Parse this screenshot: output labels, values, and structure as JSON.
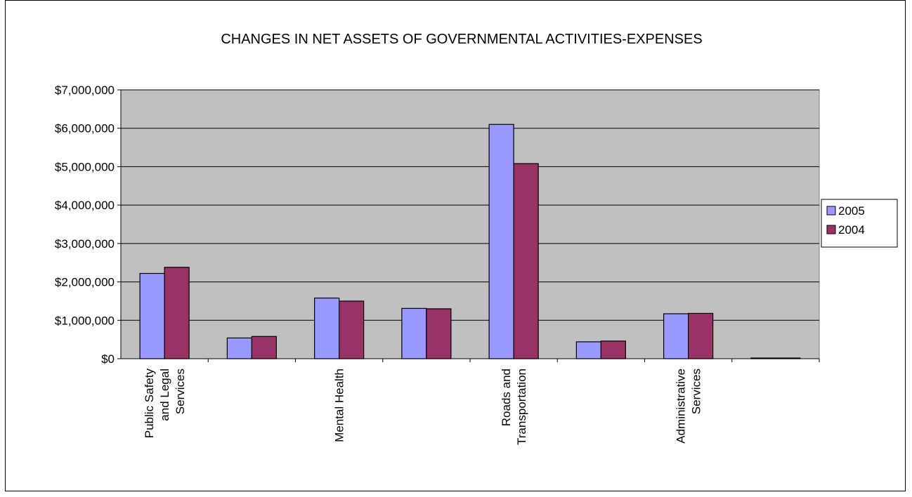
{
  "chart_data": {
    "type": "bar",
    "title": "CHANGES IN NET ASSETS OF GOVERNMENTAL ACTIVITIES-EXPENSES",
    "xlabel": "",
    "ylabel": "",
    "ylim": [
      0,
      7000000
    ],
    "y_ticks": [
      0,
      1000000,
      2000000,
      3000000,
      4000000,
      5000000,
      6000000,
      7000000
    ],
    "y_tick_labels": [
      "$0",
      "$1,000,000",
      "$2,000,000",
      "$3,000,000",
      "$4,000,000",
      "$5,000,000",
      "$6,000,000",
      "$7,000,000"
    ],
    "categories": [
      [
        "Public Safety",
        "and Legal",
        "Services"
      ],
      [],
      [
        "Mental Health"
      ],
      [],
      [
        "Roads and",
        "Transportation"
      ],
      [],
      [
        "Administrative",
        "Services"
      ],
      []
    ],
    "series": [
      {
        "name": "2005",
        "color": "#9999ff",
        "values": [
          2220000,
          540000,
          1580000,
          1310000,
          6100000,
          440000,
          1170000,
          15000
        ]
      },
      {
        "name": "2004",
        "color": "#993366",
        "values": [
          2380000,
          580000,
          1500000,
          1300000,
          5080000,
          460000,
          1180000,
          15000
        ]
      }
    ],
    "grid": true,
    "plot_background": "#c0c0c0",
    "legend_position": "right"
  }
}
